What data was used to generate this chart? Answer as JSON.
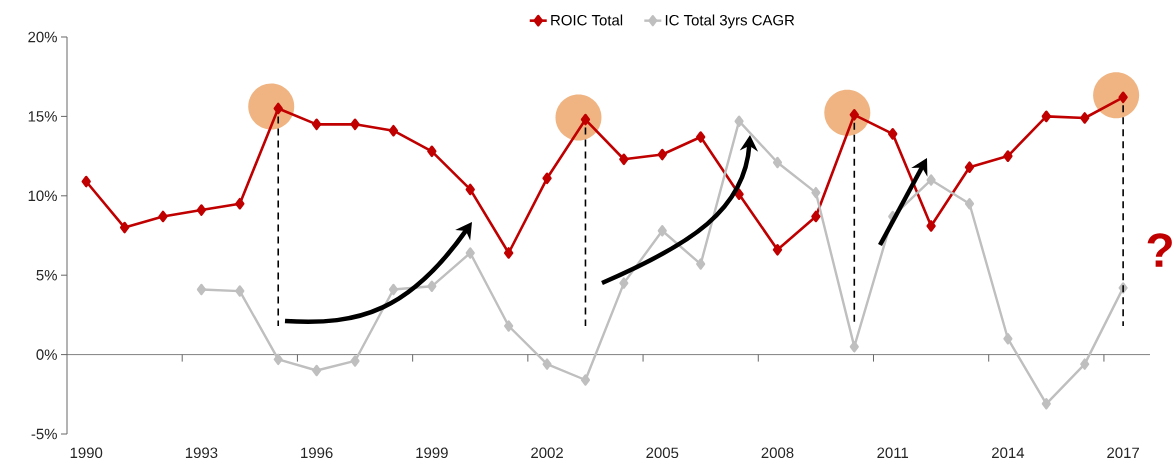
{
  "chart_data": {
    "type": "line",
    "x": [
      1990,
      1991,
      1992,
      1993,
      1994,
      1995,
      1996,
      1997,
      1998,
      1999,
      2000,
      2001,
      2002,
      2003,
      2004,
      2005,
      2006,
      2007,
      2008,
      2009,
      2010,
      2011,
      2012,
      2013,
      2014,
      2015,
      2016,
      2017
    ],
    "series": [
      {
        "name": "ROIC Total",
        "color": "#c00000",
        "values": [
          10.9,
          8.0,
          8.7,
          9.1,
          9.5,
          15.5,
          14.5,
          14.5,
          14.1,
          12.8,
          10.4,
          6.4,
          11.1,
          14.8,
          12.3,
          12.6,
          13.7,
          10.1,
          6.6,
          8.7,
          15.1,
          13.9,
          8.1,
          11.8,
          12.5,
          15.0,
          14.9,
          16.2
        ]
      },
      {
        "name": "IC Total 3yrs CAGR",
        "color": "#bfbfbf",
        "values": [
          null,
          null,
          null,
          4.1,
          4.0,
          -0.3,
          -1.0,
          -0.4,
          4.1,
          4.3,
          6.4,
          1.8,
          -0.6,
          -1.6,
          4.5,
          7.8,
          5.7,
          14.7,
          12.1,
          10.2,
          0.5,
          8.7,
          11.0,
          9.5,
          1.0,
          -3.1,
          -0.6,
          4.2
        ]
      }
    ],
    "xlim": [
      1989.5,
      2017.7
    ],
    "xticks": [
      1990,
      {
        "value": 1992.5,
        "label": null
      },
      1993,
      {
        "value": 1995.5,
        "label": null
      },
      1996,
      {
        "value": 1998.5,
        "label": null
      },
      1999,
      {
        "value": 2001.5,
        "label": null
      },
      2002,
      {
        "value": 2004.5,
        "label": null
      },
      2005,
      {
        "value": 2007.5,
        "label": null
      },
      2008,
      {
        "value": 2010.5,
        "label": null
      },
      2011,
      {
        "value": 2013.5,
        "label": null
      },
      2014,
      {
        "value": 2016.5,
        "label": null
      },
      2017
    ],
    "ylim": [
      -5,
      20
    ],
    "yticks": [
      {
        "value": -5,
        "label": "-5%"
      },
      {
        "value": 0,
        "label": "0%"
      },
      {
        "value": 5,
        "label": "5%"
      },
      {
        "value": 10,
        "label": "10%"
      },
      {
        "value": 15,
        "label": "15%"
      },
      {
        "value": 20,
        "label": "20%"
      }
    ],
    "ref_lines": [
      {
        "axis": "x",
        "value": 1995,
        "line_style": "dashed",
        "color": "#000000"
      },
      {
        "axis": "x",
        "value": 2003,
        "line_style": "dashed",
        "color": "#000000"
      },
      {
        "axis": "x",
        "value": 2010,
        "line_style": "dashed",
        "color": "#000000"
      },
      {
        "axis": "x",
        "value": 2017,
        "line_style": "dashed",
        "color": "#000000"
      },
      {
        "axis": "y",
        "value": 0,
        "line_style": "solid",
        "color": "#7f7f7f"
      }
    ],
    "annotations": [
      "?"
    ],
    "marker": "diamond",
    "line_style": "solid",
    "grid": false,
    "legend": "top"
  }
}
